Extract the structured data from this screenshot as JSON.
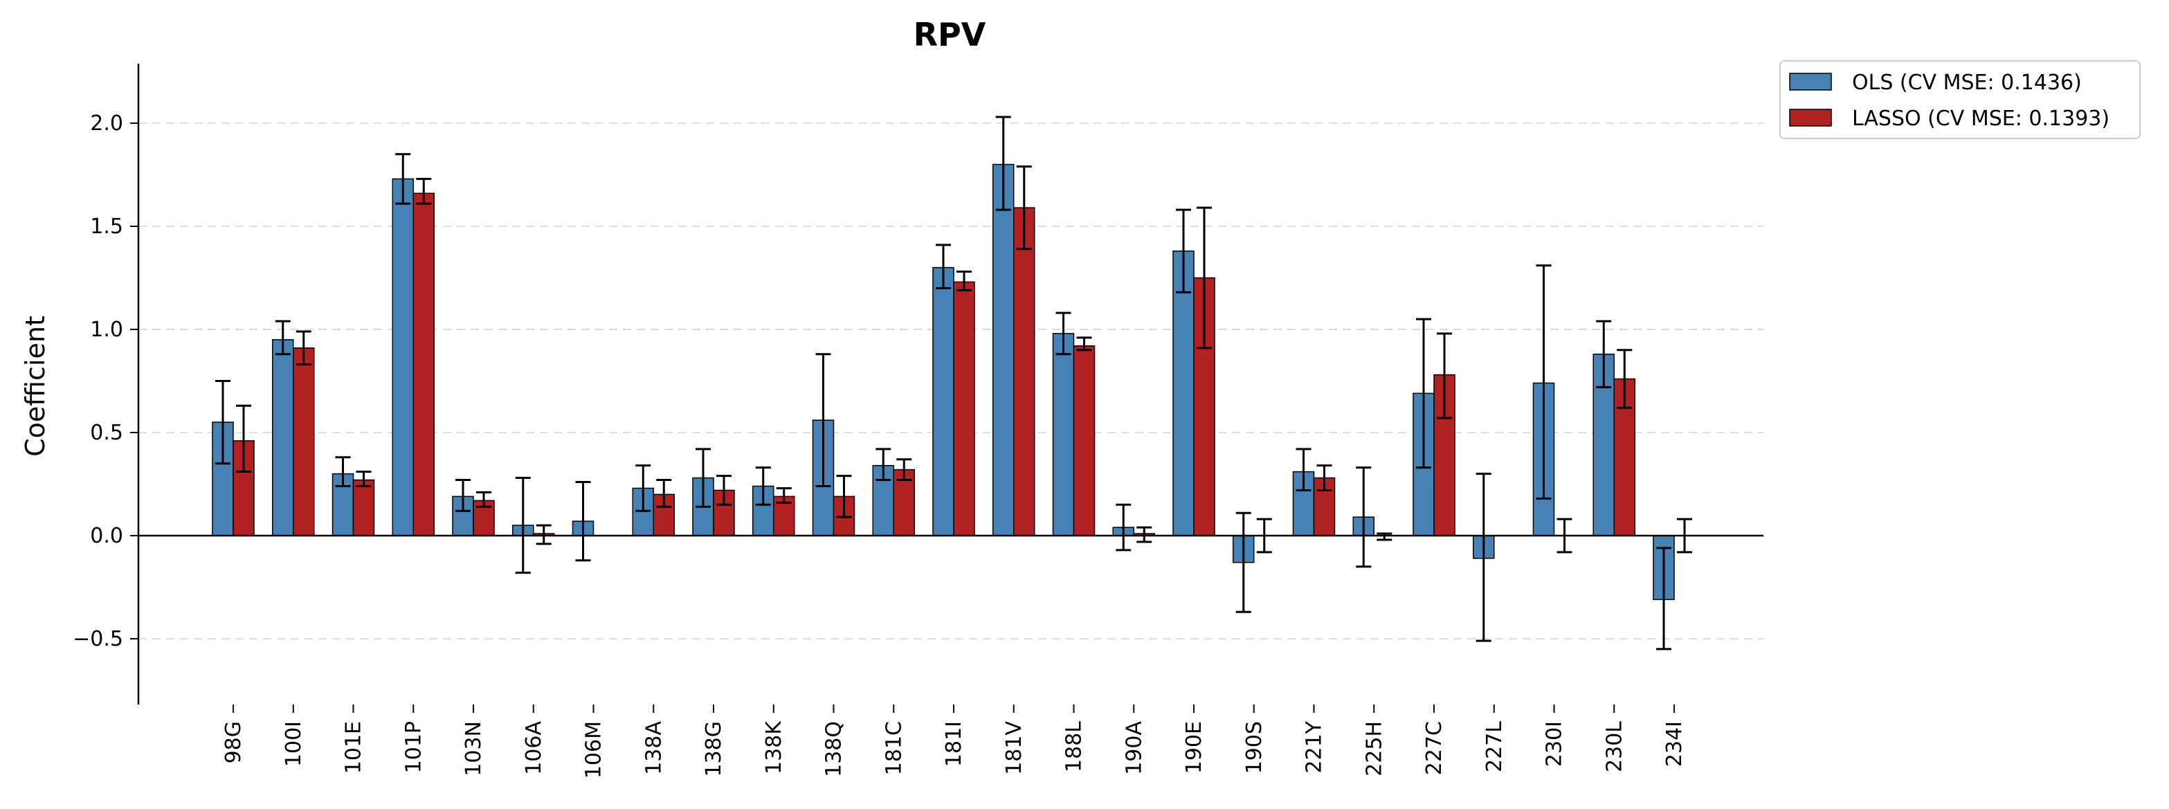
{
  "chart_data": {
    "type": "bar",
    "title": "RPV",
    "xlabel": "",
    "ylabel": "Coefficient",
    "ylim": [
      -0.8,
      2.3
    ],
    "yticks": [
      -0.5,
      0.0,
      0.5,
      1.0,
      1.5,
      2.0
    ],
    "ytick_labels": [
      "−0.5",
      "0.0",
      "0.5",
      "1.0",
      "1.5",
      "2.0"
    ],
    "grid": "horizontal dashed",
    "legend_position": "top-right, outside plot",
    "categories": [
      "98G",
      "100I",
      "101E",
      "101P",
      "103N",
      "106A",
      "106M",
      "138A",
      "138G",
      "138K",
      "138Q",
      "181C",
      "181I",
      "181V",
      "188L",
      "190A",
      "190E",
      "190S",
      "221Y",
      "225H",
      "227C",
      "227L",
      "230I",
      "230L",
      "234I"
    ],
    "series": [
      {
        "name": "OLS (CV MSE: 0.1436)",
        "color": "#4682b4",
        "values": [
          0.55,
          0.95,
          0.3,
          1.73,
          0.19,
          0.05,
          0.07,
          0.23,
          0.28,
          0.24,
          0.56,
          0.34,
          1.3,
          1.8,
          0.98,
          0.04,
          1.38,
          -0.13,
          0.31,
          0.09,
          0.69,
          -0.11,
          0.74,
          0.88,
          -0.31
        ],
        "err_low": [
          0.35,
          0.88,
          0.24,
          1.61,
          0.12,
          -0.18,
          -0.12,
          0.12,
          0.14,
          0.15,
          0.24,
          0.27,
          1.2,
          1.58,
          0.88,
          -0.07,
          1.18,
          -0.37,
          0.22,
          -0.15,
          0.33,
          -0.51,
          0.18,
          0.72,
          -0.55
        ],
        "err_high": [
          0.75,
          1.04,
          0.38,
          1.85,
          0.27,
          0.28,
          0.26,
          0.34,
          0.42,
          0.33,
          0.88,
          0.42,
          1.41,
          2.03,
          1.08,
          0.15,
          1.58,
          0.11,
          0.42,
          0.33,
          1.05,
          0.3,
          1.31,
          1.04,
          -0.06
        ]
      },
      {
        "name": "LASSO (CV MSE: 0.1393)",
        "color": "#b22222",
        "values": [
          0.46,
          0.91,
          0.27,
          1.66,
          0.17,
          0.01,
          0.0,
          0.2,
          0.22,
          0.19,
          0.19,
          0.32,
          1.23,
          1.59,
          0.92,
          0.01,
          1.25,
          0.0,
          0.28,
          0.0,
          0.78,
          0.0,
          0.0,
          0.76,
          0.0
        ],
        "err_low": [
          0.31,
          0.83,
          0.24,
          1.61,
          0.14,
          -0.04,
          0.0,
          0.14,
          0.15,
          0.16,
          0.09,
          0.27,
          1.19,
          1.39,
          0.9,
          -0.03,
          0.91,
          -0.08,
          0.22,
          -0.02,
          0.57,
          0.0,
          -0.08,
          0.62,
          -0.08
        ],
        "err_high": [
          0.63,
          0.99,
          0.31,
          1.73,
          0.21,
          0.05,
          0.0,
          0.27,
          0.29,
          0.23,
          0.29,
          0.37,
          1.28,
          1.79,
          0.96,
          0.04,
          1.59,
          0.08,
          0.34,
          0.01,
          0.98,
          0.0,
          0.08,
          0.9,
          0.08
        ]
      }
    ]
  }
}
